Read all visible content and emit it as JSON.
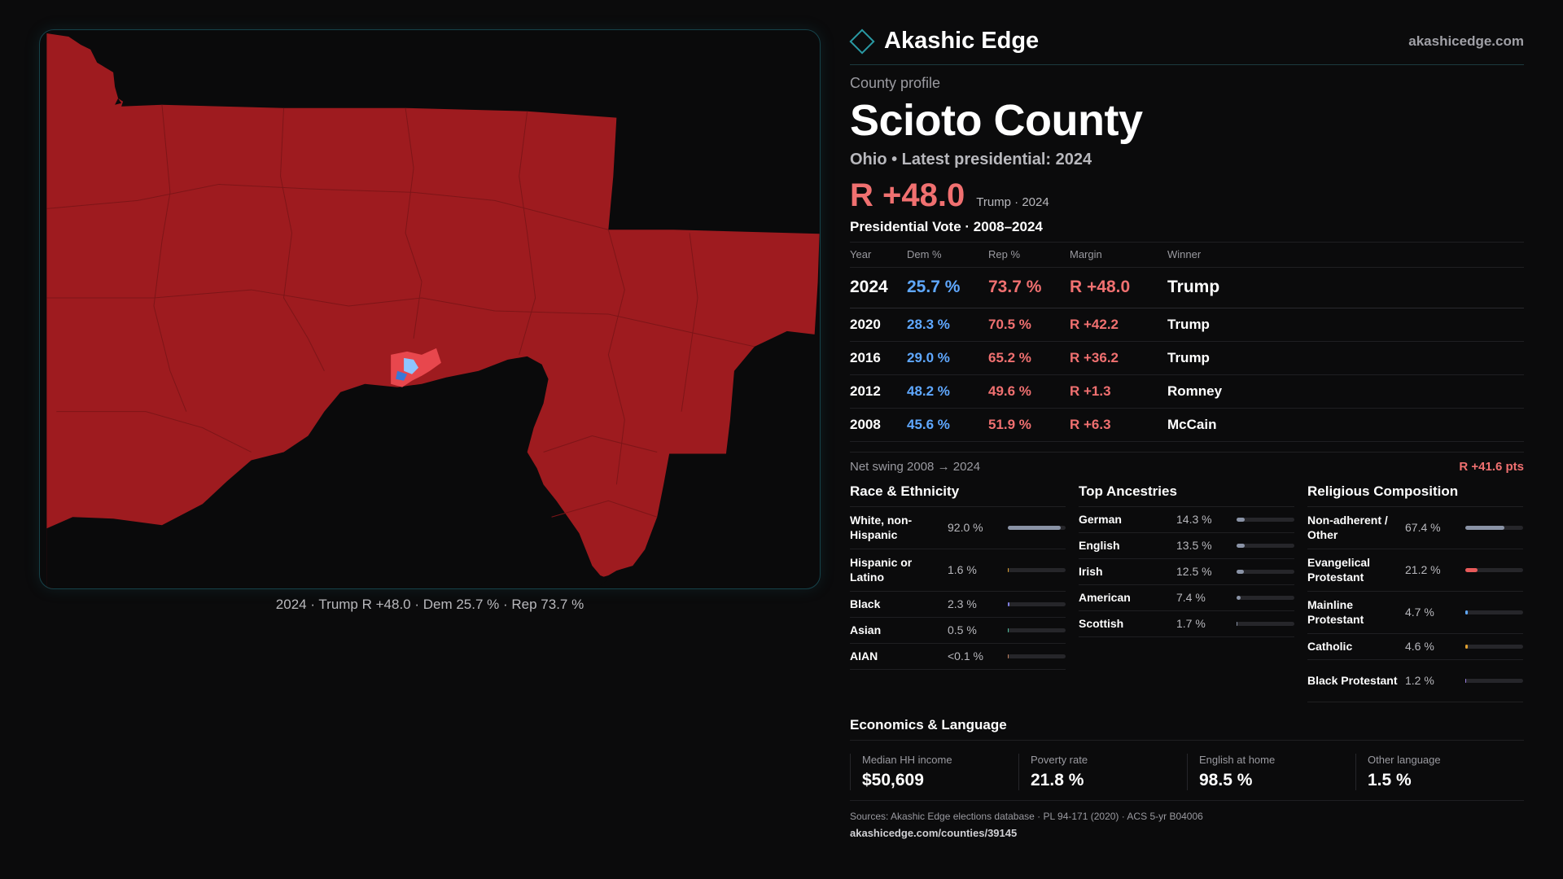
{
  "map": {
    "caption": "2024 · Trump R +48.0 · Dem 25.7 % · Rep 73.7 %",
    "colors": {
      "rep_strong": "#9e1b1f",
      "rep_lean": "#e8474d",
      "dem_lean": "#8ec5ff",
      "dem_strong": "#3a78d6",
      "background": "#0a0a0b"
    }
  },
  "brand": {
    "name": "Akashic Edge",
    "site": "akashicedge.com",
    "logo_icon": "diamond-outline-icon"
  },
  "profile": {
    "kicker": "County profile",
    "county": "Scioto County",
    "subtitle": "Ohio • Latest presidential: 2024",
    "headline_margin": "R +48.0",
    "headline_who": "Trump · 2024"
  },
  "votes": {
    "title": "Presidential Vote · 2008–2024",
    "headers": {
      "year": "Year",
      "dem": "Dem %",
      "rep": "Rep %",
      "margin": "Margin",
      "winner": "Winner"
    },
    "rows": [
      {
        "year": "2024",
        "dem": "25.7 %",
        "rep": "73.7 %",
        "margin": "R +48.0",
        "winner": "Trump"
      },
      {
        "year": "2020",
        "dem": "28.3 %",
        "rep": "70.5 %",
        "margin": "R +42.2",
        "winner": "Trump"
      },
      {
        "year": "2016",
        "dem": "29.0 %",
        "rep": "65.2 %",
        "margin": "R +36.2",
        "winner": "Trump"
      },
      {
        "year": "2012",
        "dem": "48.2 %",
        "rep": "49.6 %",
        "margin": "R +1.3",
        "winner": "Romney"
      },
      {
        "year": "2008",
        "dem": "45.6 %",
        "rep": "51.9 %",
        "margin": "R +6.3",
        "winner": "McCain"
      }
    ]
  },
  "swing": {
    "label": "Net swing 2008 → 2024",
    "value": "R +41.6 pts"
  },
  "race": {
    "title": "Race & Ethnicity",
    "items": [
      {
        "name": "White, non-Hispanic",
        "pct": "92.0 %",
        "frac": 0.92,
        "color": "#8a93a6"
      },
      {
        "name": "Hispanic or Latino",
        "pct": "1.6 %",
        "frac": 0.016,
        "color": "#e0a030"
      },
      {
        "name": "Black",
        "pct": "2.3 %",
        "frac": 0.023,
        "color": "#7f7fe0"
      },
      {
        "name": "Asian",
        "pct": "0.5 %",
        "frac": 0.005,
        "color": "#50c0a0"
      },
      {
        "name": "AIAN",
        "pct": "<0.1 %",
        "frac": 0.0,
        "color": "#c08060"
      }
    ]
  },
  "ancestry": {
    "title": "Top Ancestries",
    "items": [
      {
        "name": "German",
        "pct": "14.3 %",
        "frac": 0.143,
        "color": "#8a93a6"
      },
      {
        "name": "English",
        "pct": "13.5 %",
        "frac": 0.135,
        "color": "#8a93a6"
      },
      {
        "name": "Irish",
        "pct": "12.5 %",
        "frac": 0.125,
        "color": "#8a93a6"
      },
      {
        "name": "American",
        "pct": "7.4 %",
        "frac": 0.074,
        "color": "#8a93a6"
      },
      {
        "name": "Scottish",
        "pct": "1.7 %",
        "frac": 0.017,
        "color": "#8a93a6"
      }
    ]
  },
  "religion": {
    "title": "Religious Composition",
    "items": [
      {
        "name": "Non-adherent / Other",
        "pct": "67.4 %",
        "frac": 0.674,
        "color": "#8a93a6"
      },
      {
        "name": "Evangelical Protestant",
        "pct": "21.2 %",
        "frac": 0.212,
        "color": "#e85a5a"
      },
      {
        "name": "Mainline Protestant",
        "pct": "4.7 %",
        "frac": 0.047,
        "color": "#5fa8ff"
      },
      {
        "name": "Catholic",
        "pct": "4.6 %",
        "frac": 0.046,
        "color": "#e0a030"
      },
      {
        "name": "Black Protestant",
        "pct": "1.2 %",
        "frac": 0.012,
        "color": "#9a7fe0"
      }
    ]
  },
  "economics": {
    "title": "Economics & Language",
    "stats": [
      {
        "label": "Median HH income",
        "value": "$50,609"
      },
      {
        "label": "Poverty rate",
        "value": "21.8 %"
      },
      {
        "label": "English at home",
        "value": "98.5 %"
      },
      {
        "label": "Other language",
        "value": "1.5 %"
      }
    ]
  },
  "footer": {
    "sources": "Sources: Akashic Edge elections database · PL 94-171 (2020) · ACS 5-yr B04006",
    "url": "akashicedge.com/counties/39145"
  }
}
